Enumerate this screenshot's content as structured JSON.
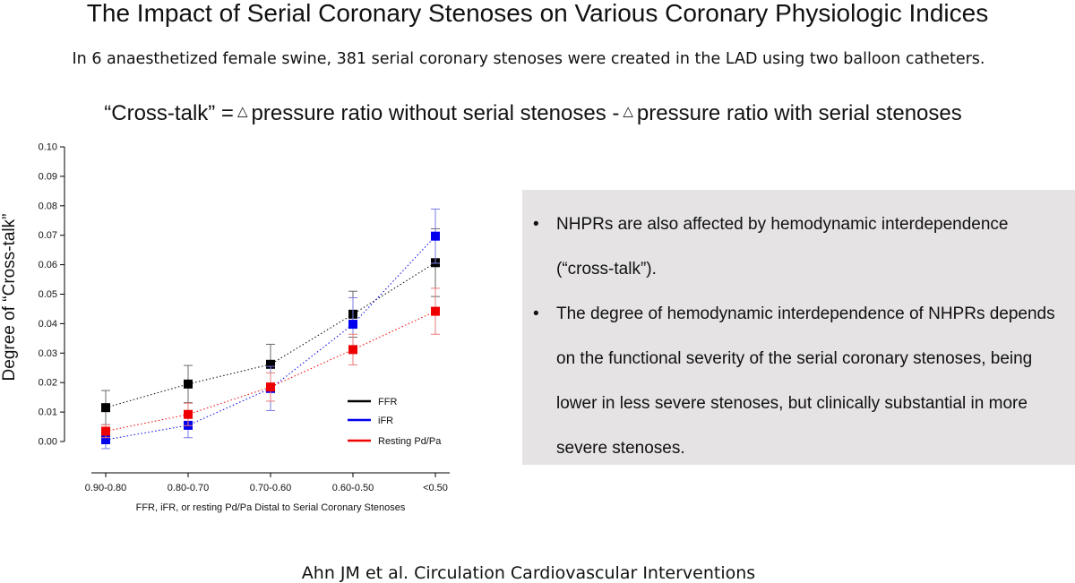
{
  "slide": {
    "title": "The Impact of Serial Coronary Stenoses on Various Coronary Physiologic Indices",
    "subtitle": "In 6 anaesthetized female swine, 381 serial coronary stenoses were created in the LAD using two balloon catheters.",
    "formula": {
      "lhs": "“Cross-talk” =",
      "triangle": "△",
      "term1": "pressure ratio without serial stenoses -",
      "term2": "pressure ratio with serial stenoses"
    },
    "bullets": [
      "NHPRs are also affected by hemodynamic interdependence (“cross-talk”).",
      "The degree of hemodynamic interdependence of NHPRs depends on the functional severity of the serial coronary stenoses, being lower in less severe stenoses, but clinically substantial in more severe stenoses."
    ],
    "bullet_glyph": "•",
    "citation": "Ahn JM et al. Circulation Cardiovascular Interventions"
  },
  "chart_data": {
    "type": "line",
    "categories": [
      "0.90-0.80",
      "0.80-0.70",
      "0.70-0.60",
      "0.60-0.50",
      "<0.50"
    ],
    "xlabel": "FFR, iFR, or resting  Pd/Pa Distal to Serial Coronary Stenoses",
    "ylabel": "Degree of “Cross-talk”",
    "ylim": [
      0,
      0.1
    ],
    "yticks": [
      "0.00",
      "0.01",
      "0.02",
      "0.03",
      "0.04",
      "0.05",
      "0.06",
      "0.07",
      "0.08",
      "0.09",
      "0.10"
    ],
    "grid": false,
    "legend_position": "lower-right",
    "series": [
      {
        "name": "FFR",
        "color": "#000000",
        "values": [
          0.0115,
          0.0195,
          0.0262,
          0.0432,
          0.0607
        ],
        "err": [
          0.0058,
          0.0063,
          0.0068,
          0.0078,
          0.0115
        ]
      },
      {
        "name": "iFR",
        "color": "#0000ee",
        "values": [
          0.0006,
          0.0055,
          0.018,
          0.0398,
          0.0697
        ],
        "err": [
          0.003,
          0.0042,
          0.0075,
          0.009,
          0.0092
        ]
      },
      {
        "name": "Resting Pd/Pa",
        "color": "#ee0000",
        "values": [
          0.0035,
          0.0092,
          0.0185,
          0.0312,
          0.0442
        ],
        "err": [
          0.0022,
          0.0038,
          0.0048,
          0.0052,
          0.0078
        ]
      }
    ]
  }
}
